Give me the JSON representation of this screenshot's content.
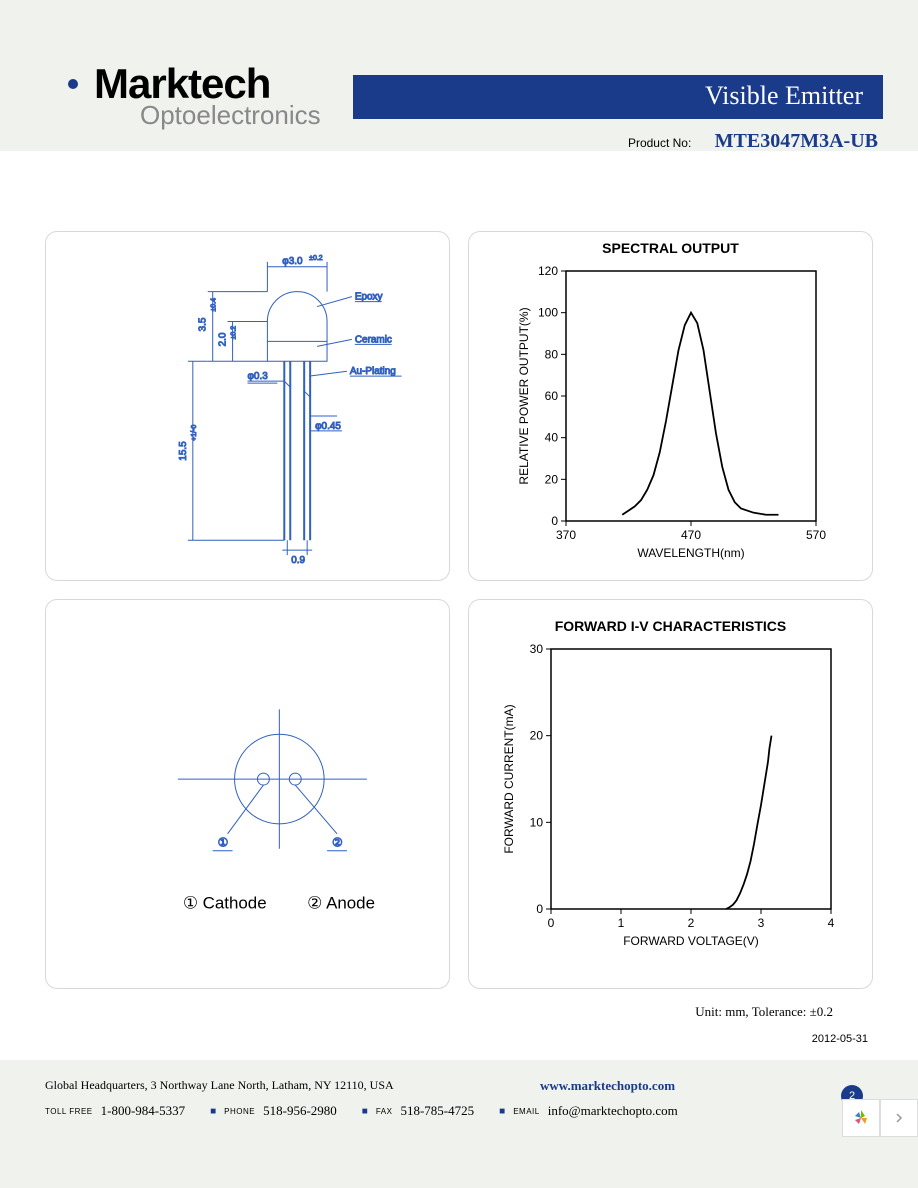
{
  "brand": {
    "name": "Marktech",
    "sub": "Optoelectronics",
    "logo_color": "#1a3a8a"
  },
  "header": {
    "title": "Visible Emitter",
    "title_bg": "#1a3a8a",
    "product_label": "Product No:",
    "product_no": "MTE3047M3A-UB"
  },
  "mech_drawing": {
    "color": "#3060c0",
    "dims": {
      "width": "φ3.0",
      "width_tol": "±0.2",
      "body_h": "3.5",
      "body_h_tol": "±0.4",
      "inner_h": "2.0",
      "inner_h_tol": "±0.2",
      "lead_d": "φ0.3",
      "lead_tip": "φ0.45",
      "lead_len": "15.5",
      "lead_len_tol": "+1/-0",
      "pitch": "0.9"
    },
    "labels": {
      "epoxy": "Epoxy",
      "ceramic": "Ceramic",
      "plating": "Au-Plating"
    }
  },
  "pinout": {
    "pin1_mark": "①",
    "pin2_mark": "②",
    "pin1_label": "① Cathode",
    "pin2_label": "② Anode",
    "color": "#3060c0"
  },
  "spectral_chart": {
    "type": "line",
    "title": "SPECTRAL OUTPUT",
    "xlabel": "WAVELENGTH(nm)",
    "ylabel": "RELATIVE POWER OUTPUT(%)",
    "xlim": [
      370,
      570
    ],
    "xtick_step": 100,
    "ylim": [
      0,
      120
    ],
    "ytick_step": 20,
    "line_color": "#000000",
    "line_width": 1.8,
    "data": [
      [
        415,
        3
      ],
      [
        420,
        5
      ],
      [
        425,
        7
      ],
      [
        430,
        10
      ],
      [
        435,
        15
      ],
      [
        440,
        22
      ],
      [
        445,
        33
      ],
      [
        450,
        48
      ],
      [
        455,
        65
      ],
      [
        460,
        82
      ],
      [
        465,
        94
      ],
      [
        470,
        100
      ],
      [
        475,
        95
      ],
      [
        480,
        82
      ],
      [
        485,
        62
      ],
      [
        490,
        42
      ],
      [
        495,
        26
      ],
      [
        500,
        15
      ],
      [
        505,
        9
      ],
      [
        510,
        6
      ],
      [
        520,
        4
      ],
      [
        530,
        3
      ],
      [
        540,
        3
      ]
    ]
  },
  "iv_chart": {
    "type": "line",
    "title": "FORWARD I-V CHARACTERISTICS",
    "xlabel": "FORWARD VOLTAGE(V)",
    "ylabel": "FORWARD CURRENT(mA)",
    "xlim": [
      0,
      4
    ],
    "xtick_step": 1,
    "ylim": [
      0,
      30
    ],
    "ytick_step": 10,
    "line_color": "#000000",
    "line_width": 1.8,
    "data": [
      [
        2.5,
        0
      ],
      [
        2.55,
        0.2
      ],
      [
        2.6,
        0.5
      ],
      [
        2.65,
        1
      ],
      [
        2.7,
        1.8
      ],
      [
        2.75,
        2.8
      ],
      [
        2.8,
        4
      ],
      [
        2.85,
        5.5
      ],
      [
        2.9,
        7.5
      ],
      [
        2.95,
        9.8
      ],
      [
        3.0,
        12
      ],
      [
        3.05,
        14.5
      ],
      [
        3.1,
        17
      ],
      [
        3.12,
        18.5
      ],
      [
        3.15,
        20
      ]
    ]
  },
  "notes": {
    "unit": "Unit: mm, Tolerance: ±0.2",
    "date": "2012-05-31"
  },
  "footer": {
    "hq": "Global Headquarters, 3 Northway Lane North, Latham, NY 12110, USA",
    "website": "www.marktechopto.com",
    "tollfree_label": "TOLL FREE",
    "tollfree": "1-800-984-5337",
    "phone_label": "PHONE",
    "phone": "518-956-2980",
    "fax_label": "FAX",
    "fax": "518-785-4725",
    "email_label": "EMAIL",
    "email": "info@marktechopto.com",
    "page": "2"
  }
}
